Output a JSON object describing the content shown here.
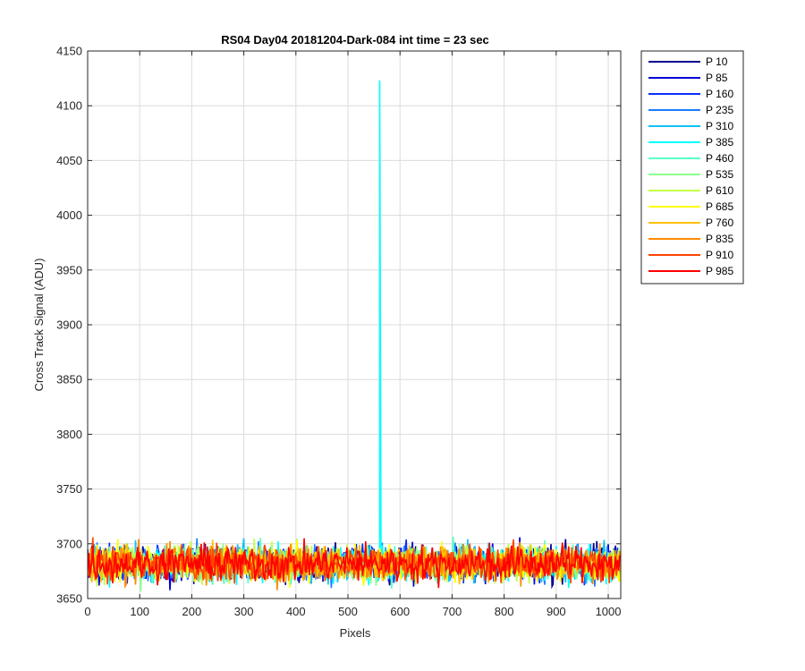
{
  "chart_data": {
    "type": "line",
    "title": "RS04 Day04 20181204-Dark-084 int time = 23 sec",
    "xlabel": "Pixels",
    "ylabel": "Cross Track Signal (ADU)",
    "xlim": [
      0,
      1024
    ],
    "ylim": [
      3650,
      4150
    ],
    "xticks": [
      0,
      100,
      200,
      300,
      400,
      500,
      600,
      700,
      800,
      900,
      1000
    ],
    "yticks": [
      3650,
      3700,
      3750,
      3800,
      3850,
      3900,
      3950,
      4000,
      4050,
      4100,
      4150
    ],
    "grid": true,
    "legend_position": "outside-top-right",
    "noise_baseline": 3682,
    "noise_range": [
      3652,
      3715
    ],
    "series": [
      {
        "name": "P 10",
        "color": "#00008f"
      },
      {
        "name": "P 85",
        "color": "#0000d6"
      },
      {
        "name": "P 160",
        "color": "#0a2eff"
      },
      {
        "name": "P 235",
        "color": "#1b7dff"
      },
      {
        "name": "P 310",
        "color": "#12c2f5"
      },
      {
        "name": "P 385",
        "color": "#00ffff",
        "spike": {
          "x": 561,
          "y": 4123
        }
      },
      {
        "name": "P 460",
        "color": "#5affc6"
      },
      {
        "name": "P 535",
        "color": "#8bff8b"
      },
      {
        "name": "P 610",
        "color": "#c3ff44"
      },
      {
        "name": "P 685",
        "color": "#ffff00"
      },
      {
        "name": "P 760",
        "color": "#ffc000"
      },
      {
        "name": "P 835",
        "color": "#ff8a00"
      },
      {
        "name": "P 910",
        "color": "#ff4400"
      },
      {
        "name": "P 985",
        "color": "#ff0000"
      }
    ]
  }
}
